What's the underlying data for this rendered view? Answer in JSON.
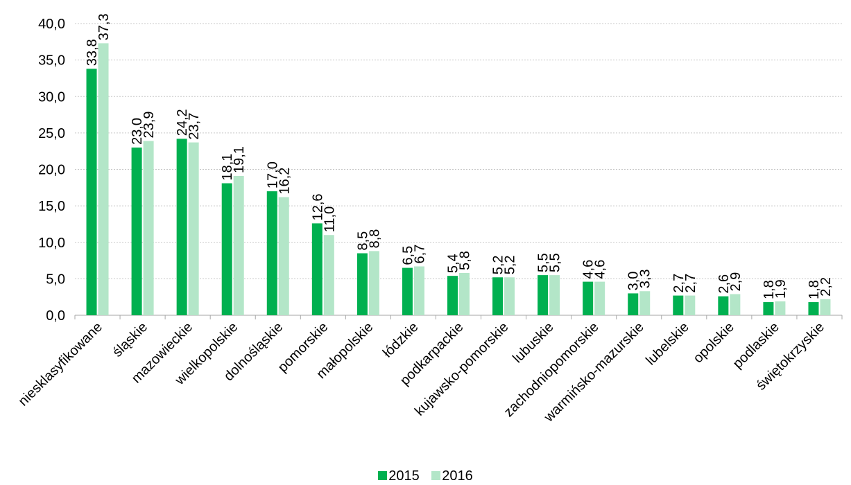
{
  "chart_data": {
    "type": "bar",
    "categories": [
      "niesklasyfikowane",
      "śląskie",
      "mazowieckie",
      "wielkopolskie",
      "dolnośląskie",
      "pomorskie",
      "małopolskie",
      "łódzkie",
      "podkarpackie",
      "kujawsko-pomorskie",
      "lubuskie",
      "zachodniopomorskie",
      "warmińsko-mazurskie",
      "lubelskie",
      "opolskie",
      "podlaskie",
      "świętokrzyskie"
    ],
    "series": [
      {
        "name": "2015",
        "color": "#00b050",
        "values": [
          33.8,
          23.0,
          24.2,
          18.1,
          17.0,
          12.6,
          8.5,
          6.5,
          5.4,
          5.2,
          5.5,
          4.6,
          3.0,
          2.7,
          2.6,
          1.8,
          1.8
        ],
        "labels": [
          "33,8",
          "23,0",
          "24,2",
          "18,1",
          "17,0",
          "12,6",
          "8,5",
          "6,5",
          "5,4",
          "5,2",
          "5,5",
          "4,6",
          "3,0",
          "2,7",
          "2,6",
          "1,8",
          "1,8"
        ]
      },
      {
        "name": "2016",
        "color": "#b3e6c8",
        "values": [
          37.3,
          23.9,
          23.7,
          19.1,
          16.2,
          11.0,
          8.8,
          6.7,
          5.8,
          5.2,
          5.5,
          4.6,
          3.3,
          2.7,
          2.9,
          1.9,
          2.2
        ],
        "labels": [
          "37,3",
          "23,9",
          "23,7",
          "19,1",
          "16,2",
          "11,0",
          "8,8",
          "6,7",
          "5,8",
          "5,2",
          "5,5",
          "4,6",
          "3,3",
          "2,7",
          "2,9",
          "1,9",
          "2,2"
        ]
      }
    ],
    "yticks": [
      0,
      5,
      10,
      15,
      20,
      25,
      30,
      35,
      40
    ],
    "ytick_labels": [
      "0,0",
      "5,0",
      "10,0",
      "15,0",
      "20,0",
      "25,0",
      "30,0",
      "35,0",
      "40,0"
    ],
    "ylim": [
      0,
      40
    ],
    "grid": true,
    "legend_position": "bottom",
    "title": "",
    "xlabel": "",
    "ylabel": ""
  }
}
